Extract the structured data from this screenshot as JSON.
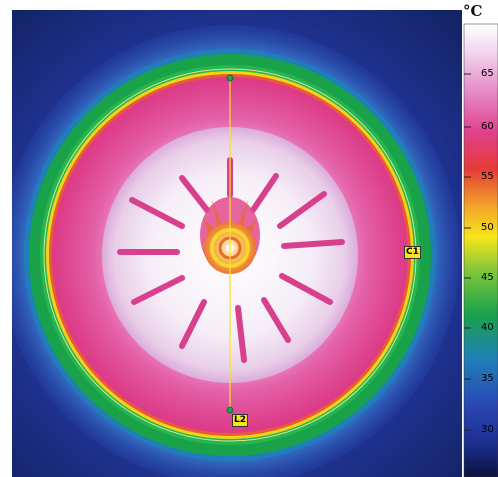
{
  "scale": {
    "unit": "°C",
    "ticks": [
      {
        "label": "65",
        "value": 65
      },
      {
        "label": "60",
        "value": 60
      },
      {
        "label": "55",
        "value": 55
      },
      {
        "label": "50",
        "value": 50
      },
      {
        "label": "45",
        "value": 45
      },
      {
        "label": "40",
        "value": 40
      },
      {
        "label": "35",
        "value": 35
      },
      {
        "label": "30",
        "value": 30
      }
    ]
  },
  "markers": {
    "circle": "C1",
    "line": "L2"
  },
  "colors": {
    "background": "#1b2d8a",
    "outer_ring": "#15a34a",
    "tire": "#e0408c",
    "rim": "#f3e7f3",
    "marker": "#f7e51b"
  }
}
